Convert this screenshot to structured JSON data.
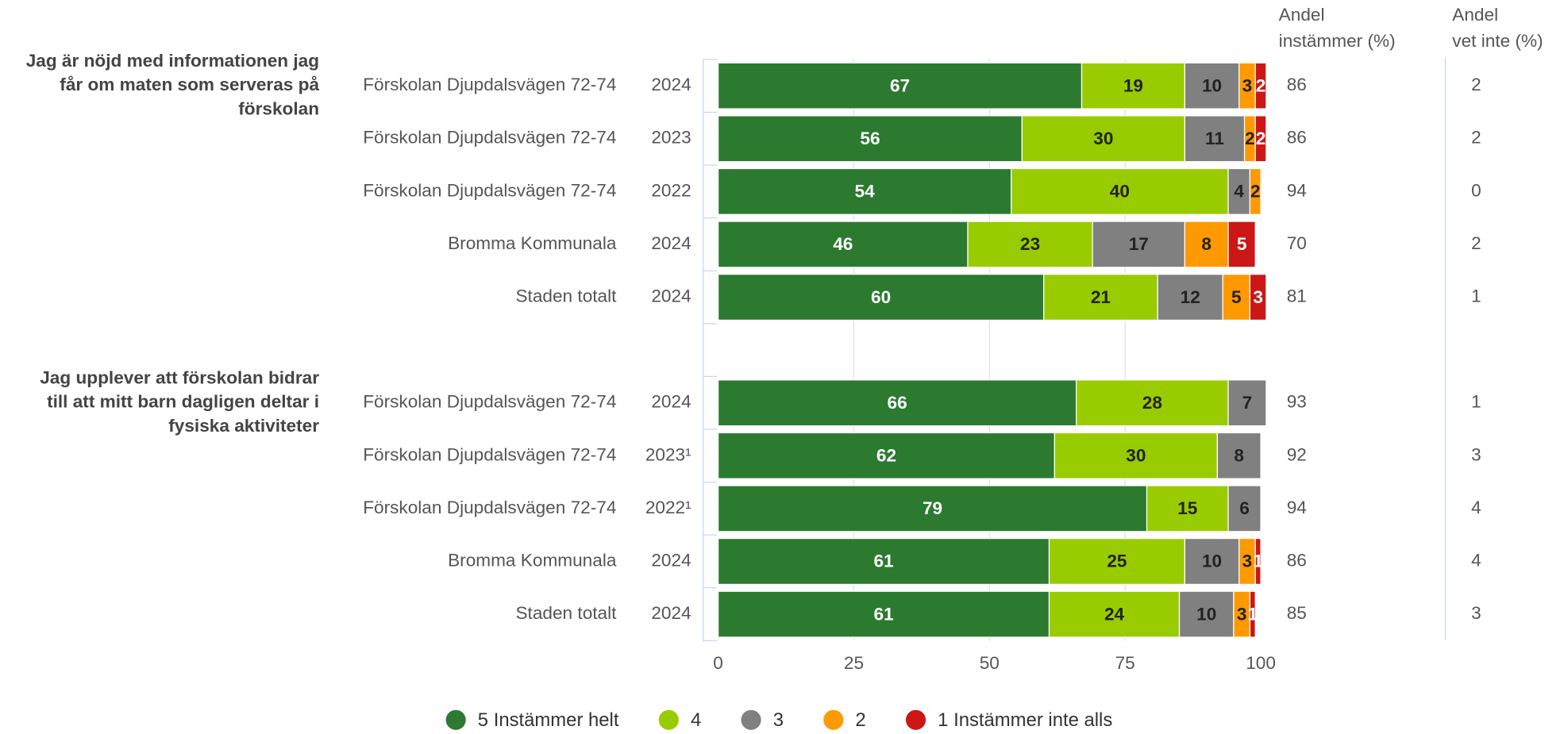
{
  "chart_data": {
    "type": "stacked_bar_h",
    "xlim": [
      0,
      100
    ],
    "xticks": [
      0,
      25,
      50,
      75,
      100
    ],
    "grid": true,
    "groups": [
      {
        "label": [
          "Jag är nöjd med informationen jag",
          "får om maten som serveras på",
          "förskolan"
        ],
        "rows": [
          {
            "name": "Förskolan Djupdalsvägen 72-74",
            "year": "2024"
          },
          {
            "name": "Förskolan Djupdalsvägen 72-74",
            "year": "2023"
          },
          {
            "name": "Förskolan Djupdalsvägen 72-74",
            "year": "2022"
          },
          {
            "name": "Bromma Kommunala",
            "year": "2024"
          },
          {
            "name": "Staden totalt",
            "year": "2024"
          }
        ]
      },
      {
        "label": [
          "Jag upplever att förskolan bidrar",
          "till att mitt barn dagligen deltar i",
          "fysiska aktiviteter"
        ],
        "rows": [
          {
            "name": "Förskolan Djupdalsvägen 72-74",
            "year": "2024"
          },
          {
            "name": "Förskolan Djupdalsvägen 72-74",
            "year": "2023¹"
          },
          {
            "name": "Förskolan Djupdalsvägen 72-74",
            "year": "2022¹"
          },
          {
            "name": "Bromma Kommunala",
            "year": "2024"
          },
          {
            "name": "Staden totalt",
            "year": "2024"
          }
        ]
      }
    ],
    "series": [
      {
        "name": "5 Instämmer helt",
        "color": "#2b7a30",
        "label_color": "#ffffff",
        "values": [
          67,
          56,
          54,
          46,
          60,
          66,
          62,
          79,
          61,
          61
        ]
      },
      {
        "name": "4",
        "color": "#99cc00",
        "label_color": "#222222",
        "values": [
          19,
          30,
          40,
          23,
          21,
          28,
          30,
          15,
          25,
          24
        ]
      },
      {
        "name": "3",
        "color": "#808080",
        "label_color": "#222222",
        "values": [
          10,
          11,
          4,
          17,
          12,
          7,
          8,
          6,
          10,
          10
        ]
      },
      {
        "name": "2",
        "color": "#ff9900",
        "label_color": "#222222",
        "values": [
          3,
          2,
          2,
          8,
          5,
          0,
          0,
          0,
          3,
          3
        ]
      },
      {
        "name": "1 Instämmer inte alls",
        "color": "#cc1717",
        "label_color": "#ffffff",
        "values": [
          2,
          2,
          0,
          5,
          3,
          0,
          0,
          0,
          1,
          1
        ]
      }
    ],
    "columns": [
      {
        "header": [
          "Andel",
          "instämmer (%)"
        ],
        "values": [
          86,
          86,
          94,
          70,
          81,
          93,
          92,
          94,
          86,
          85
        ]
      },
      {
        "header": [
          "Andel",
          "vet inte (%)"
        ],
        "values": [
          2,
          2,
          0,
          2,
          1,
          1,
          3,
          4,
          4,
          3
        ]
      }
    ]
  }
}
